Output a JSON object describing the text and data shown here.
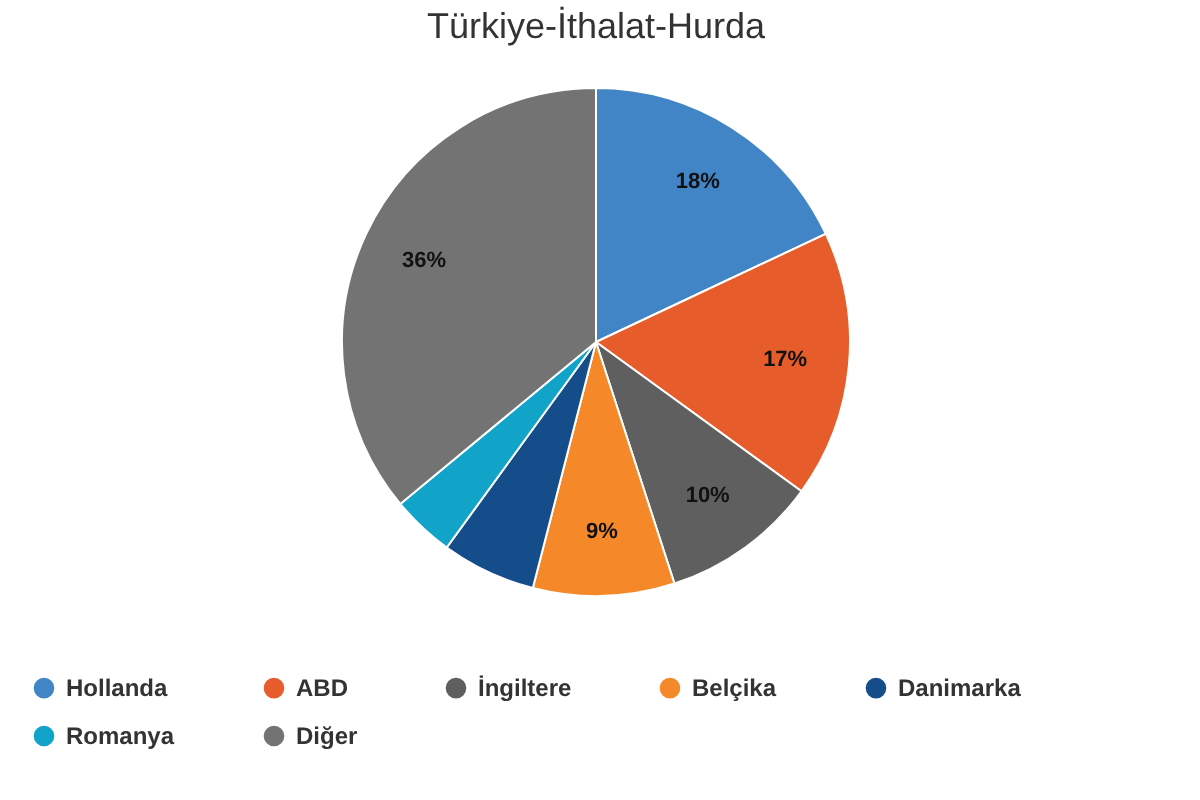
{
  "chart_data": {
    "type": "pie",
    "title": "Türkiye-İthalat-Hurda",
    "categories": [
      "Hollanda",
      "ABD",
      "İngiltere",
      "Belçika",
      "Danimarka",
      "Romanya",
      "Diğer"
    ],
    "values": [
      18,
      17,
      10,
      9,
      6,
      4,
      36
    ],
    "colors": [
      "#4285c6",
      "#e65c2a",
      "#5f5f5f",
      "#f5892a",
      "#144d8a",
      "#11a4c8",
      "#737373"
    ],
    "value_labels": [
      "18%",
      "17%",
      "10%",
      "9%",
      null,
      null,
      "36%"
    ],
    "legend": "bottom"
  }
}
